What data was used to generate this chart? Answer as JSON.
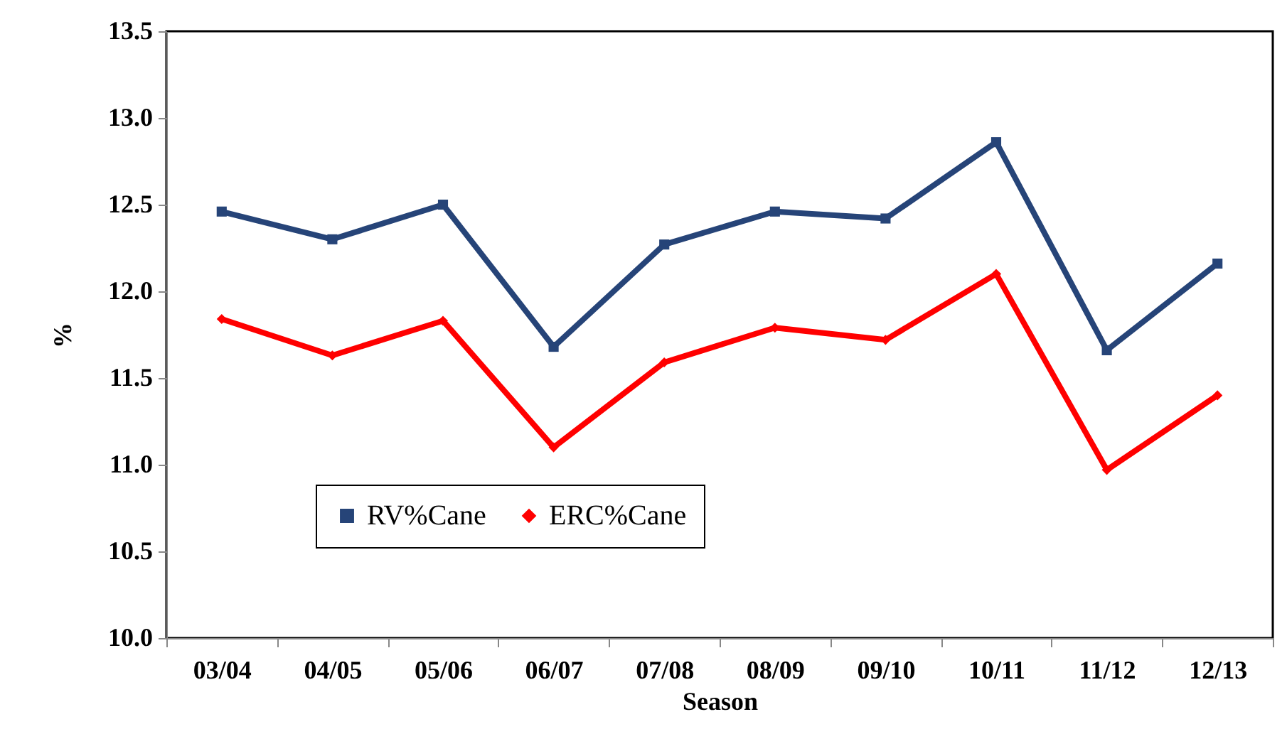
{
  "chart_data": {
    "type": "line",
    "xlabel": "Season",
    "ylabel": "%",
    "categories": [
      "03/04",
      "04/05",
      "05/06",
      "06/07",
      "07/08",
      "08/09",
      "09/10",
      "10/11",
      "11/12",
      "12/13"
    ],
    "series": [
      {
        "name": "RV%Cane",
        "color": "#264478",
        "marker": "square",
        "values": [
          12.46,
          12.3,
          12.5,
          11.68,
          12.27,
          12.46,
          12.42,
          12.86,
          11.66,
          12.16
        ]
      },
      {
        "name": "ERC%Cane",
        "color": "#ff0000",
        "marker": "diamond",
        "values": [
          11.84,
          11.63,
          11.83,
          11.1,
          11.59,
          11.79,
          11.72,
          12.1,
          10.97,
          11.4
        ]
      }
    ],
    "ylim": [
      10.0,
      13.5
    ],
    "yticks": [
      {
        "value": 10,
        "label": "10.0"
      },
      {
        "value": 10.5,
        "label": "10.5"
      },
      {
        "value": 11,
        "label": "11.0"
      },
      {
        "value": 11.5,
        "label": "11.5"
      },
      {
        "value": 12,
        "label": "12.0"
      },
      {
        "value": 12.5,
        "label": "12.5"
      },
      {
        "value": 13,
        "label": "13.0"
      },
      {
        "value": 13.5,
        "label": "13.5"
      }
    ],
    "grid": false,
    "legend": "bottom left",
    "line_style": "solid"
  }
}
